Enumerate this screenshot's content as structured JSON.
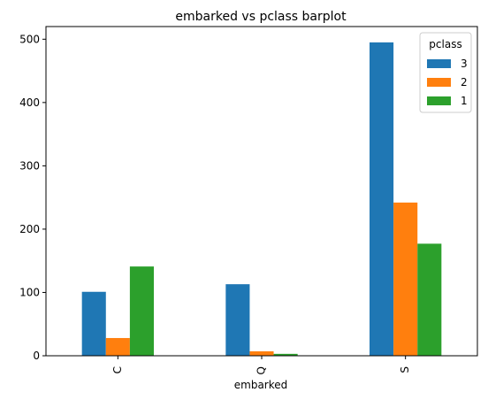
{
  "chart_data": {
    "type": "bar",
    "title": "embarked vs pclass barplot",
    "xlabel": "embarked",
    "ylabel": "",
    "categories": [
      "C",
      "Q",
      "S"
    ],
    "series": [
      {
        "name": "3",
        "values": [
          101,
          113,
          495
        ],
        "color": "#1f77b4"
      },
      {
        "name": "2",
        "values": [
          28,
          7,
          242
        ],
        "color": "#ff7f0e"
      },
      {
        "name": "1",
        "values": [
          141,
          3,
          177
        ],
        "color": "#2ca02c"
      }
    ],
    "ylim": [
      0,
      520
    ],
    "yticks": [
      0,
      100,
      200,
      300,
      400,
      500
    ],
    "legend": {
      "title": "pclass",
      "placement": "top-right"
    },
    "grid": false
  }
}
